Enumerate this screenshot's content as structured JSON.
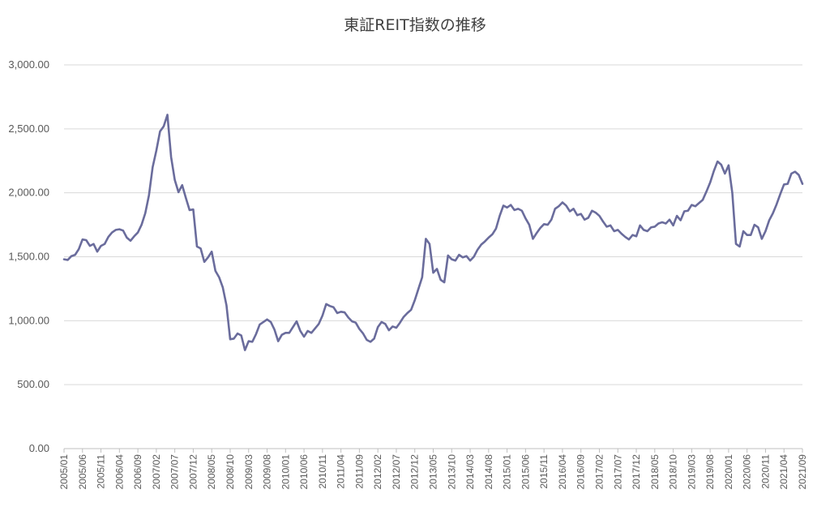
{
  "chart_data": {
    "type": "line",
    "title": "東証REIT指数の推移",
    "xlabel": "",
    "ylabel": "",
    "ylim": [
      0,
      3000
    ],
    "yticks": [
      0,
      500,
      1000,
      1500,
      2000,
      2500,
      3000
    ],
    "ytick_labels": [
      "0.00",
      "500.00",
      "1,000.00",
      "1,500.00",
      "2,000.00",
      "2,500.00",
      "3,000.00"
    ],
    "xtick_labels": [
      "2005/01",
      "2005/06",
      "2005/11",
      "2006/04",
      "2006/09",
      "2007/02",
      "2007/07",
      "2007/12",
      "2008/05",
      "2008/10",
      "2009/03",
      "2009/08",
      "2010/01",
      "2010/06",
      "2010/11",
      "2011/04",
      "2011/09",
      "2012/02",
      "2012/07",
      "2012/12",
      "2013/05",
      "2013/10",
      "2014/03",
      "2014/08",
      "2015/01",
      "2015/06",
      "2015/11",
      "2016/04",
      "2016/09",
      "2017/02",
      "2017/07",
      "2017/12",
      "2018/05",
      "2018/10",
      "2019/03",
      "2019/08",
      "2020/01",
      "2020/06",
      "2020/11",
      "2021/04",
      "2021/09"
    ],
    "grid": true,
    "legend": "none",
    "color": "#6a6c9c",
    "start": "2005/01",
    "frequency": "monthly",
    "series": [
      {
        "values": [
          1480,
          1475,
          1505,
          1515,
          1560,
          1635,
          1630,
          1585,
          1600,
          1540,
          1585,
          1600,
          1655,
          1690,
          1710,
          1715,
          1705,
          1650,
          1625,
          1660,
          1690,
          1750,
          1840,
          1980,
          2200,
          2330,
          2480,
          2520,
          2610,
          2280,
          2100,
          2005,
          2060,
          1960,
          1865,
          1870,
          1580,
          1565,
          1460,
          1495,
          1540,
          1390,
          1340,
          1260,
          1120,
          855,
          860,
          900,
          885,
          770,
          840,
          835,
          895,
          970,
          990,
          1010,
          990,
          930,
          840,
          890,
          905,
          905,
          950,
          995,
          920,
          875,
          920,
          905,
          940,
          975,
          1040,
          1130,
          1115,
          1105,
          1060,
          1070,
          1065,
          1025,
          995,
          985,
          935,
          900,
          850,
          835,
          860,
          950,
          990,
          975,
          925,
          955,
          945,
          985,
          1030,
          1060,
          1085,
          1160,
          1250,
          1340,
          1640,
          1600,
          1375,
          1405,
          1320,
          1300,
          1510,
          1480,
          1470,
          1515,
          1495,
          1505,
          1470,
          1500,
          1555,
          1595,
          1620,
          1650,
          1675,
          1720,
          1820,
          1900,
          1885,
          1905,
          1865,
          1875,
          1860,
          1800,
          1750,
          1640,
          1685,
          1725,
          1755,
          1750,
          1790,
          1875,
          1895,
          1925,
          1900,
          1855,
          1875,
          1825,
          1835,
          1790,
          1805,
          1860,
          1845,
          1820,
          1775,
          1735,
          1745,
          1700,
          1710,
          1680,
          1655,
          1635,
          1670,
          1660,
          1745,
          1710,
          1700,
          1730,
          1735,
          1760,
          1770,
          1760,
          1790,
          1745,
          1820,
          1785,
          1855,
          1860,
          1905,
          1895,
          1920,
          1945,
          2010,
          2080,
          2170,
          2245,
          2220,
          2150,
          2215,
          2000,
          1600,
          1580,
          1700,
          1670,
          1670,
          1750,
          1730,
          1640,
          1700,
          1785,
          1840,
          1910,
          1990,
          2065,
          2070,
          2150,
          2165,
          2140,
          2070
        ]
      }
    ]
  }
}
